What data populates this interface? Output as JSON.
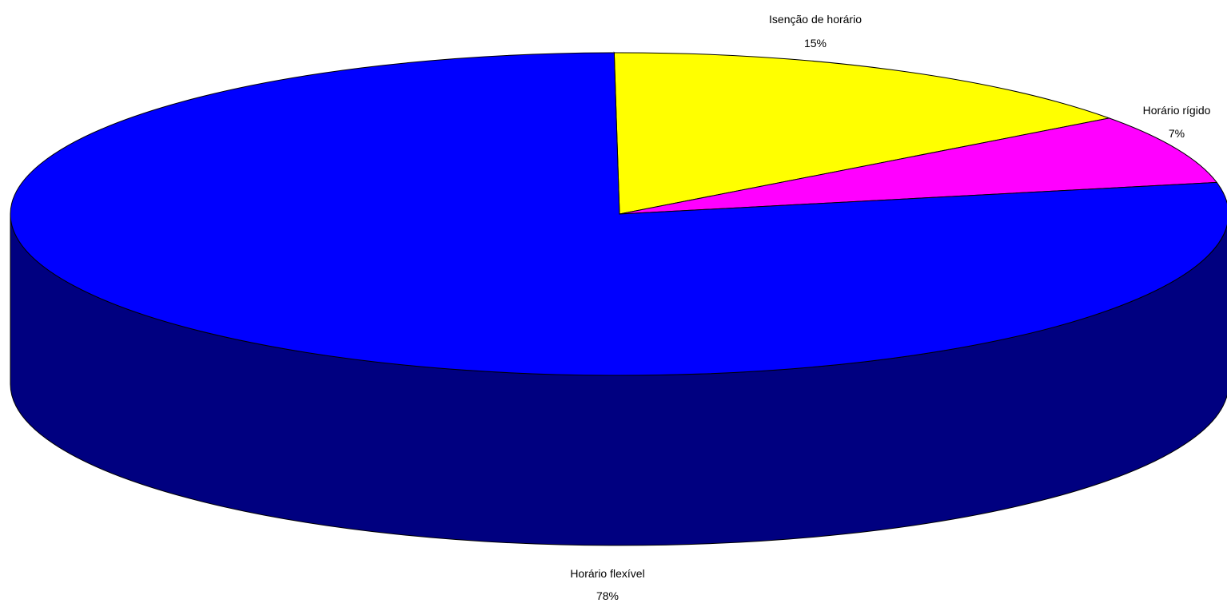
{
  "chart_data": {
    "type": "pie",
    "style": "3d",
    "slices": [
      {
        "label": "Isenção de horário",
        "value": 15,
        "value_label": "15%",
        "color": "#FFFF00",
        "side_color": "#808000"
      },
      {
        "label": "Horário rígido",
        "value": 7,
        "value_label": "7%",
        "color": "#FF00FF",
        "side_color": "#800080"
      },
      {
        "label": "Horário flexível",
        "value": 78,
        "value_label": "78%",
        "color": "#0000FF",
        "side_color": "#000080"
      }
    ]
  }
}
